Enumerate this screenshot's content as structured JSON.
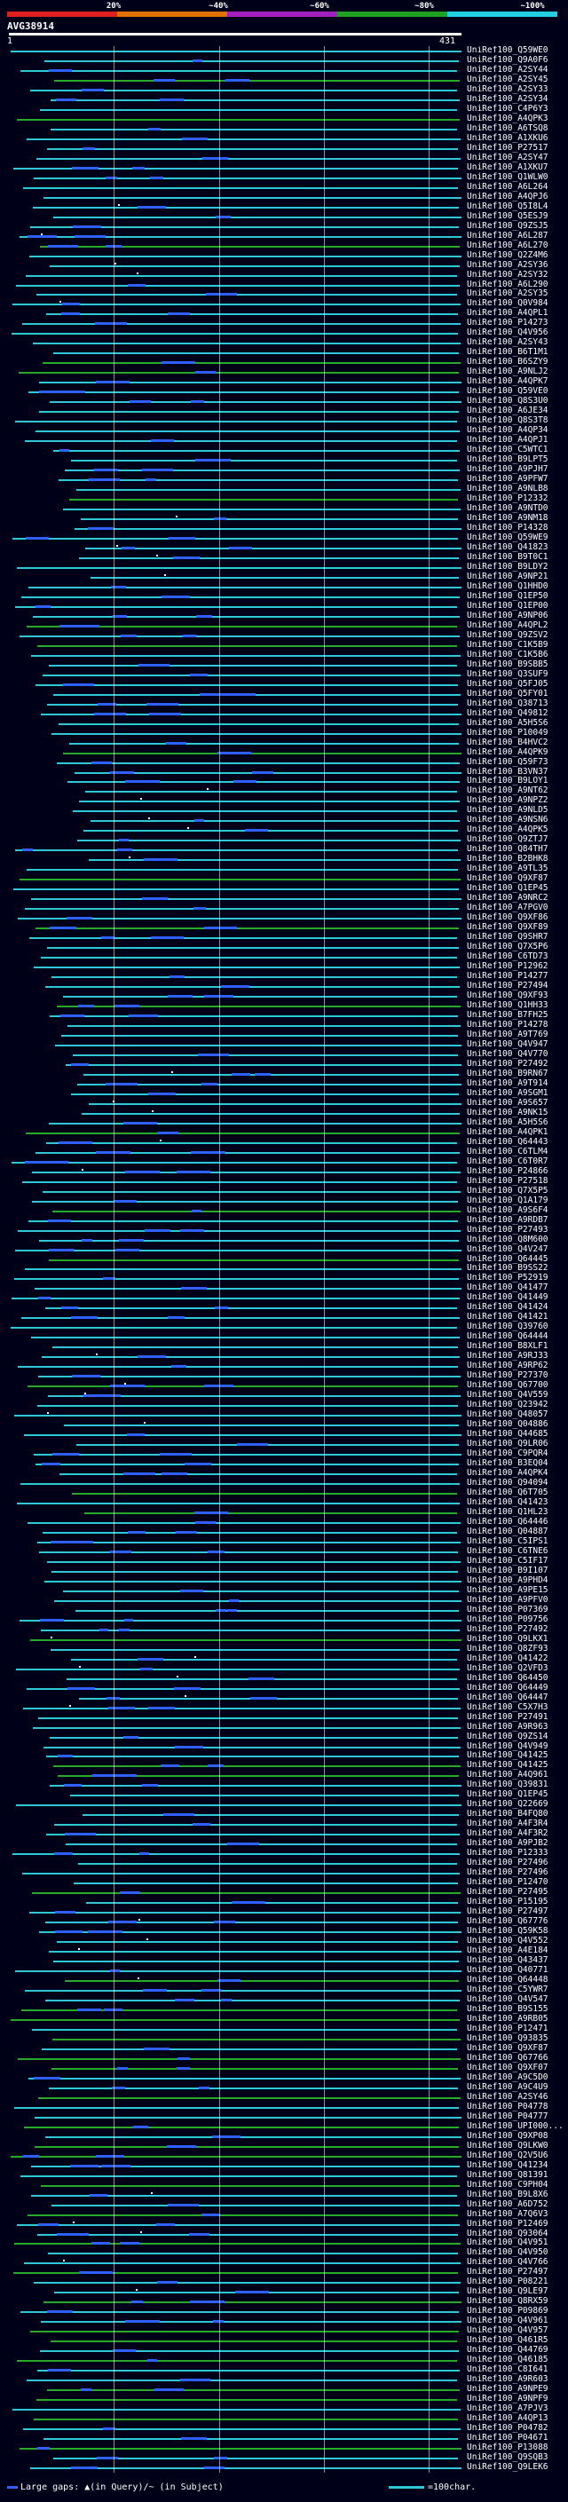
{
  "legend": {
    "percent_labels": [
      "20%",
      "~40%",
      "~60%",
      "~80%",
      "~100%"
    ],
    "bands": [
      {
        "name": "0-20",
        "color": "#e02020"
      },
      {
        "name": "20-40",
        "color": "#e07000"
      },
      {
        "name": "40-60",
        "color": "#a020c0"
      },
      {
        "name": "60-80",
        "color": "#20a020"
      },
      {
        "name": "80-100",
        "color": "#20d0e0"
      }
    ]
  },
  "query": {
    "name": "AVG38914",
    "start": "1",
    "end": "431"
  },
  "hits": [
    "UniRef100_Q59WE0",
    "UniRef100_Q9A0F6",
    "UniRef100_A2SY44",
    "UniRef100_A2SY45",
    "UniRef100_A2SY33",
    "UniRef100_A2SY34",
    "UniRef100_C4P6Y3",
    "UniRef100_A4QPK3",
    "UniRef100_A6TSQ8",
    "UniRef100_A1XKU6",
    "UniRef100_P27517",
    "UniRef100_A2SY47",
    "UniRef100_A1XKU7",
    "UniRef100_Q1WLW0",
    "UniRef100_A6L264",
    "UniRef100_A4QPJ6",
    "UniRef100_Q5I8L4",
    "UniRef100_Q5ESJ9",
    "UniRef100_Q9ZSJ5",
    "UniRef100_A6L287",
    "UniRef100_A6L270",
    "UniRef100_Q2Z4M6",
    "UniRef100_A2SY36",
    "UniRef100_A2SY32",
    "UniRef100_A6L290",
    "UniRef100_A2SY35",
    "UniRef100_Q0V984",
    "UniRef100_A4QPL1",
    "UniRef100_P14273",
    "UniRef100_Q4V956",
    "UniRef100_A2SY43",
    "UniRef100_B6T1M1",
    "UniRef100_B6SZY9",
    "UniRef100_A9NLJ2",
    "UniRef100_A4QPK7",
    "UniRef100_Q59VE0",
    "UniRef100_Q8S3U0",
    "UniRef100_A6JE34",
    "UniRef100_Q8S3T8",
    "UniRef100_A4QP34",
    "UniRef100_A4QPJ1",
    "UniRef100_C5WTC1",
    "UniRef100_B9LPT5",
    "UniRef100_A9PJH7",
    "UniRef100_A9PFW7",
    "UniRef100_A9NLB8",
    "UniRef100_P12332",
    "UniRef100_A9NTD0",
    "UniRef100_A9NM18",
    "UniRef100_P14328",
    "UniRef100_Q59WE9",
    "UniRef100_Q41823",
    "UniRef100_B9T0C1",
    "UniRef100_B9LDY2",
    "UniRef100_A9NP21",
    "UniRef100_Q1HHD0",
    "UniRef100_Q1EP50",
    "UniRef100_Q1EP00",
    "UniRef100_A9NP06",
    "UniRef100_A4QPL2",
    "UniRef100_Q9ZSV2",
    "UniRef100_C1K5B9",
    "UniRef100_C1K5B6",
    "UniRef100_B9SBB5",
    "UniRef100_Q3SUF9",
    "UniRef100_Q5FJ05",
    "UniRef100_Q5FY01",
    "UniRef100_Q38713",
    "UniRef100_Q49812",
    "UniRef100_A5H5S6",
    "UniRef100_P10049",
    "UniRef100_B4HVC2",
    "UniRef100_A4QPK9",
    "UniRef100_Q59F73",
    "UniRef100_B3VN37",
    "UniRef100_B9LOY1",
    "UniRef100_A9NT62",
    "UniRef100_A9NPZ2",
    "UniRef100_A9NLD5",
    "UniRef100_A9NSN6",
    "UniRef100_A4QPK5",
    "UniRef100_Q9ZTJ7",
    "UniRef100_Q84TH7",
    "UniRef100_B2BHK8",
    "UniRef100_A9TL35",
    "UniRef100_Q9XF87",
    "UniRef100_Q1EP45",
    "UniRef100_A9NRC2",
    "UniRef100_A7PGV0",
    "UniRef100_Q9XF86",
    "UniRef100_Q9XF89",
    "UniRef100_Q9SHR7",
    "UniRef100_Q7X5P6",
    "UniRef100_C6TD73",
    "UniRef100_P12962",
    "UniRef100_P14277",
    "UniRef100_P27494",
    "UniRef100_Q9XF93",
    "UniRef100_Q1HH33",
    "UniRef100_B7FH25",
    "UniRef100_P14278",
    "UniRef100_A9T769",
    "UniRef100_Q4V947",
    "UniRef100_Q4V770",
    "UniRef100_P27492",
    "UniRef100_B9RN67",
    "UniRef100_A9T914",
    "UniRef100_A9SGM1",
    "UniRef100_A9S657",
    "UniRef100_A9NK15",
    "UniRef100_A5H5S6",
    "UniRef100_A4QPK1",
    "UniRef100_Q64443",
    "UniRef100_C6TLM4",
    "UniRef100_C6T0R7",
    "UniRef100_P24866",
    "UniRef100_P27518",
    "UniRef100_Q7X5P5",
    "UniRef100_Q1A179",
    "UniRef100_A9S6F4",
    "UniRef100_A9RDB7",
    "UniRef100_P27493",
    "UniRef100_Q8M600",
    "UniRef100_Q4V247",
    "UniRef100_Q64445",
    "UniRef100_B9SS22",
    "UniRef100_P52919",
    "UniRef100_Q41477",
    "UniRef100_Q41449",
    "UniRef100_Q41424",
    "UniRef100_Q41421",
    "UniRef100_Q39760",
    "UniRef100_Q64444",
    "UniRef100_B8XLF1",
    "UniRef100_A9RJ33",
    "UniRef100_A9RP62",
    "UniRef100_P27370",
    "UniRef100_Q67700",
    "UniRef100_Q4V559",
    "UniRef100_Q23942",
    "UniRef100_Q48057",
    "UniRef100_Q04886",
    "UniRef100_Q44685",
    "UniRef100_Q9LR06",
    "UniRef100_C9PQR4",
    "UniRef100_B3EQ04",
    "UniRef100_A4QPK4",
    "UniRef100_Q94094",
    "UniRef100_Q6T705",
    "UniRef100_Q41423",
    "UniRef100_Q1HL23",
    "UniRef100_Q64446",
    "UniRef100_Q04887",
    "UniRef100_C5IPS1",
    "UniRef100_C6TNE6",
    "UniRef100_C5IF17",
    "UniRef100_B9I107",
    "UniRef100_A9PHD4",
    "UniRef100_A9PE15",
    "UniRef100_A9PFV0",
    "UniRef100_P07369",
    "UniRef100_P09756",
    "UniRef100_P27492",
    "UniRef100_Q9LKX1",
    "UniRef100_Q8ZF93",
    "UniRef100_Q41422",
    "UniRef100_Q2VFD3",
    "UniRef100_Q64450",
    "UniRef100_Q64449",
    "UniRef100_Q64447",
    "UniRef100_C5X7H3",
    "UniRef100_P27491",
    "UniRef100_A9R963",
    "UniRef100_Q9ZS14",
    "UniRef100_Q4V949",
    "UniRef100_Q41425",
    "UniRef100_Q41425",
    "UniRef100_A4Q961",
    "UniRef100_Q39831",
    "UniRef100_Q1EP45",
    "UniRef100_Q22669",
    "UniRef100_B4FQ80",
    "UniRef100_A4F3R4",
    "UniRef100_A4F3R2",
    "UniRef100_A9PJB2",
    "UniRef100_P12333",
    "UniRef100_P27496",
    "UniRef100_P27496",
    "UniRef100_P12470",
    "UniRef100_P27495",
    "UniRef100_P15195",
    "UniRef100_P27497",
    "UniRef100_Q67776",
    "UniRef100_Q59K58",
    "UniRef100_Q4V552",
    "UniRef100_A4E184",
    "UniRef100_Q43437",
    "UniRef100_Q40771",
    "UniRef100_Q64448",
    "UniRef100_C5YWR7",
    "UniRef100_Q4V547",
    "UniRef100_B9S155",
    "UniRef100_A9RB05",
    "UniRef100_P12471",
    "UniRef100_Q93835",
    "UniRef100_Q9XF87",
    "UniRef100_Q67766",
    "UniRef100_Q9XF07",
    "UniRef100_A9C5D0",
    "UniRef100_A9C4U9",
    "UniRef100_A2SY46",
    "UniRef100_P04778",
    "UniRef100_P04777",
    "UniRef100_UPI000...",
    "UniRef100_Q9XP08",
    "UniRef100_Q9LKW0",
    "UniRef100_Q2V5U6",
    "UniRef100_Q41234",
    "UniRef100_Q81391",
    "UniRef100_C9PH04",
    "UniRef100_B9L8X6",
    "UniRef100_A6D752",
    "UniRef100_A7Q6V3",
    "UniRef100_P12469",
    "UniRef100_Q93064",
    "UniRef100_Q4V951",
    "UniRef100_Q4V950",
    "UniRef100_Q4V766",
    "UniRef100_P27497",
    "UniRef100_P08221",
    "UniRef100_Q9LE97",
    "UniRef100_Q8RX59",
    "UniRef100_P09869",
    "UniRef100_Q4V961",
    "UniRef100_Q4V957",
    "UniRef100_Q461R5",
    "UniRef100_Q44769",
    "UniRef100_Q46185",
    "UniRef100_C8I641",
    "UniRef100_A9R603",
    "UniRef100_A9NPE9",
    "UniRef100_A9NPF9",
    "UniRef100_A7PJV3",
    "UniRef100_A4QP13",
    "UniRef100_P04782",
    "UniRef100_P04671",
    "UniRef100_P13088",
    "UniRef100_Q9SQB3",
    "UniRef100_Q9LEK6"
  ],
  "footer": {
    "gaps_text": "Large gaps: ▲(in Query)/~ (in Subject)",
    "scale_text": "=100char."
  }
}
